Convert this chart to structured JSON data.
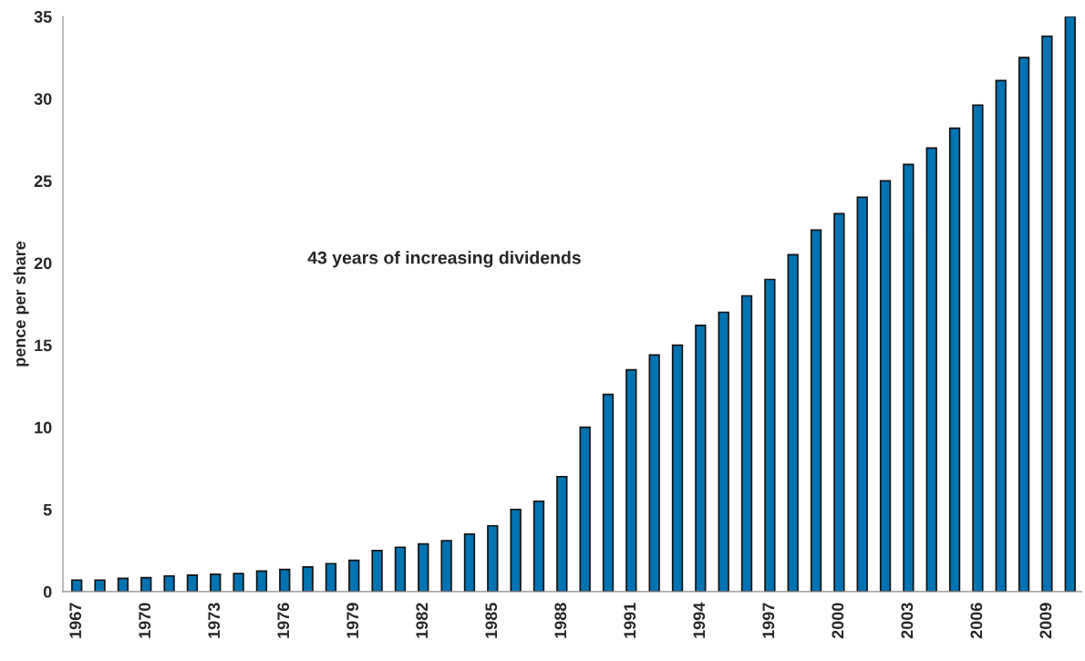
{
  "chart_data": {
    "type": "bar",
    "ylabel": "pence per share",
    "annotations": [
      "43 years of increasing dividends"
    ],
    "categories": [
      "1967",
      null,
      null,
      "1970",
      null,
      null,
      "1973",
      null,
      null,
      "1976",
      null,
      null,
      "1979",
      null,
      null,
      "1982",
      null,
      null,
      "1985",
      null,
      null,
      "1988",
      null,
      null,
      "1991",
      null,
      null,
      "1994",
      null,
      null,
      "1997",
      null,
      null,
      "2000",
      null,
      null,
      "2003",
      null,
      null,
      "2006",
      null,
      null,
      "2009",
      null
    ],
    "values": [
      0.7,
      0.7,
      0.8,
      0.85,
      0.95,
      1.0,
      1.05,
      1.1,
      1.25,
      1.35,
      1.5,
      1.7,
      1.9,
      2.5,
      2.7,
      2.9,
      3.1,
      3.5,
      4.0,
      5.0,
      5.5,
      7.0,
      10,
      12,
      13.5,
      14.4,
      15,
      16.2,
      17,
      18,
      19,
      20.5,
      22,
      23,
      24,
      25,
      26,
      27,
      28.2,
      29.6,
      31.1,
      32.5,
      33.8,
      35
    ],
    "color": "#0073b2",
    "ylim": [
      0,
      35
    ],
    "yticks": [
      0,
      5,
      10,
      15,
      20,
      25,
      30,
      35
    ],
    "grid": false,
    "legend": false
  }
}
